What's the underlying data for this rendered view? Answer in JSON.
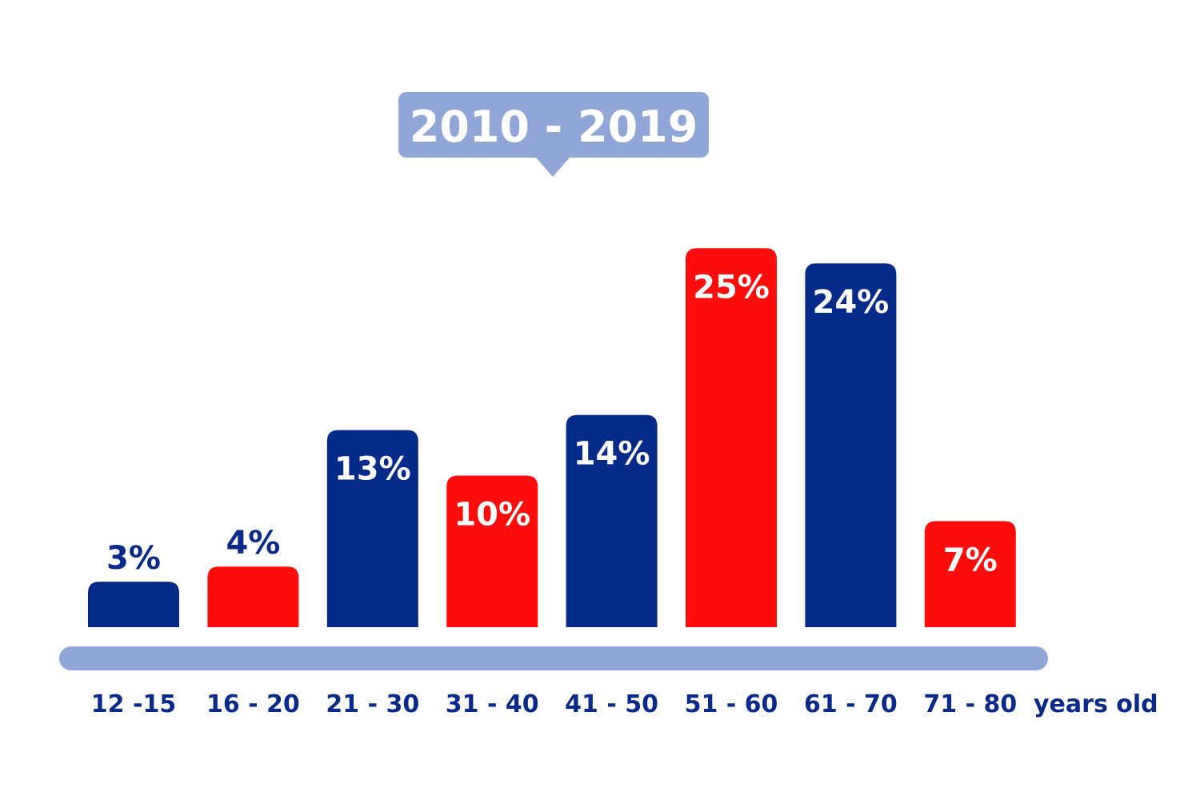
{
  "chart_data": {
    "type": "bar",
    "title": "2010 - 2019",
    "categories": [
      "12 -15",
      "16 - 20",
      "21 - 30",
      "31 - 40",
      "41 - 50",
      "51 - 60",
      "61 - 70",
      "71 - 80"
    ],
    "values": [
      3,
      4,
      13,
      10,
      14,
      25,
      24,
      7
    ],
    "value_labels": [
      "3%",
      "4%",
      "13%",
      "10%",
      "14%",
      "25%",
      "24%",
      "7%"
    ],
    "xlabel": "years old",
    "ylabel": "",
    "ylim": [
      0,
      25
    ],
    "grid": false,
    "legend": "none",
    "colors": {
      "navy": "#062a8a",
      "red": "#ff0d0d",
      "axis": "#8fa6d6",
      "title_bg": "#8fa6d6",
      "text": "#0a2a8a"
    },
    "bar_colors": [
      "navy",
      "red",
      "navy",
      "red",
      "navy",
      "red",
      "navy",
      "red"
    ]
  }
}
